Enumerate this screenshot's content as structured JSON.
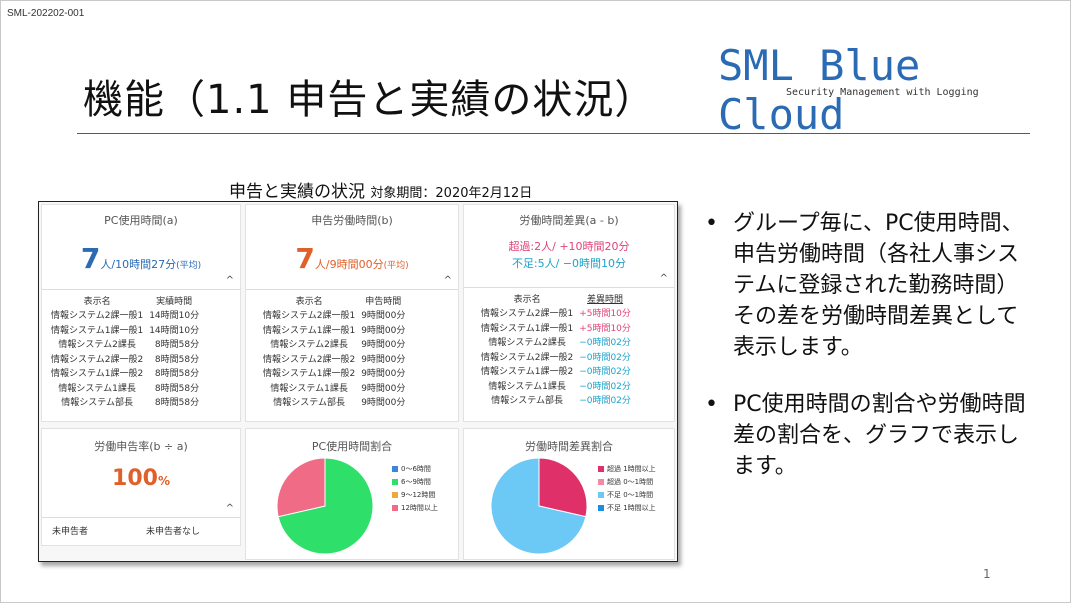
{
  "slide": {
    "doc_id": "SML-202202-001",
    "title": "機能（1.1 申告と実績の状況）",
    "logo_main": "SML Blue Cloud",
    "logo_sub": "Security Management with Logging",
    "page_number": "1"
  },
  "dashboard": {
    "title": "申告と実績の状況",
    "period": "対象期間：2020年2月12日",
    "pc_time": {
      "header": "PC使用時間(a)",
      "value": "7",
      "detail": "人/10時間27分",
      "avg": "(平均)",
      "col_name": "表示名",
      "col_value": "実績時間",
      "rows": [
        {
          "name": "情報システム2課一般1",
          "value": "14時間10分"
        },
        {
          "name": "情報システム1課一般1",
          "value": "14時間10分"
        },
        {
          "name": "情報システム2課長",
          "value": "8時間58分"
        },
        {
          "name": "情報システム2課一般2",
          "value": "8時間58分"
        },
        {
          "name": "情報システム1課一般2",
          "value": "8時間58分"
        },
        {
          "name": "情報システム1課長",
          "value": "8時間58分"
        },
        {
          "name": "情報システム部長",
          "value": "8時間58分"
        }
      ]
    },
    "declared_time": {
      "header": "申告労働時間(b)",
      "value": "7",
      "detail": "人/9時間00分",
      "avg": "(平均)",
      "col_name": "表示名",
      "col_value": "申告時間",
      "rows": [
        {
          "name": "情報システム2課一般1",
          "value": "9時間00分"
        },
        {
          "name": "情報システム1課一般1",
          "value": "9時間00分"
        },
        {
          "name": "情報システム2課長",
          "value": "9時間00分"
        },
        {
          "name": "情報システム2課一般2",
          "value": "9時間00分"
        },
        {
          "name": "情報システム1課一般2",
          "value": "9時間00分"
        },
        {
          "name": "情報システム1課長",
          "value": "9時間00分"
        },
        {
          "name": "情報システム部長",
          "value": "9時間00分"
        }
      ]
    },
    "diff_time": {
      "header": "労働時間差異(a - b)",
      "over": "超過:2人/ +10時間20分",
      "short": "不足:5人/ −0時間10分",
      "col_name": "表示名",
      "col_value": "差異時間",
      "rows": [
        {
          "name": "情報システム2課一般1",
          "value": "+5時間10分"
        },
        {
          "name": "情報システム1課一般1",
          "value": "+5時間10分"
        },
        {
          "name": "情報システム2課長",
          "value": "−0時間02分"
        },
        {
          "name": "情報システム2課一般2",
          "value": "−0時間02分"
        },
        {
          "name": "情報システム1課一般2",
          "value": "−0時間02分"
        },
        {
          "name": "情報システム1課長",
          "value": "−0時間02分"
        },
        {
          "name": "情報システム部長",
          "value": "−0時間02分"
        }
      ]
    },
    "rate": {
      "header": "労働申告率(b ÷ a)",
      "value": "100",
      "unit": "%",
      "left_label": "未申告者",
      "right_label": "未申告者なし"
    },
    "pc_ratio": {
      "header": "PC使用時間割合",
      "legend": [
        {
          "label": "0〜6時間",
          "color": "#3a86d8"
        },
        {
          "label": "6〜9時間",
          "color": "#2ee06a"
        },
        {
          "label": "9〜12時間",
          "color": "#f0a838"
        },
        {
          "label": "12時間以上",
          "color": "#f06b85"
        }
      ]
    },
    "diff_ratio": {
      "header": "労働時間差異割合",
      "legend": [
        {
          "label": "超過 1時間以上",
          "color": "#e0306a"
        },
        {
          "label": "超過 0〜1時間",
          "color": "#f08aa8"
        },
        {
          "label": "不足 0〜1時間",
          "color": "#6cc9f5"
        },
        {
          "label": "不足 1時間以上",
          "color": "#1a8ee0"
        }
      ]
    }
  },
  "chart_data": [
    {
      "type": "pie",
      "title": "PC使用時間割合",
      "categories": [
        "0〜6時間",
        "6〜9時間",
        "9〜12時間",
        "12時間以上"
      ],
      "values": [
        0,
        5,
        0,
        2
      ],
      "colors": [
        "#3a86d8",
        "#2ee06a",
        "#f0a838",
        "#f06b85"
      ]
    },
    {
      "type": "pie",
      "title": "労働時間差異割合",
      "categories": [
        "超過 1時間以上",
        "超過 0〜1時間",
        "不足 0〜1時間",
        "不足 1時間以上"
      ],
      "values": [
        2,
        0,
        5,
        0
      ],
      "colors": [
        "#e0306a",
        "#f08aa8",
        "#6cc9f5",
        "#1a8ee0"
      ]
    }
  ],
  "bullets": [
    "グループ毎に、PC使用時間、申告労働時間（各社人事システムに登録された勤務時間）その差を労働時間差異として表示します。",
    "PC使用時間の割合や労働時間差の割合を、グラフで表示します。"
  ]
}
